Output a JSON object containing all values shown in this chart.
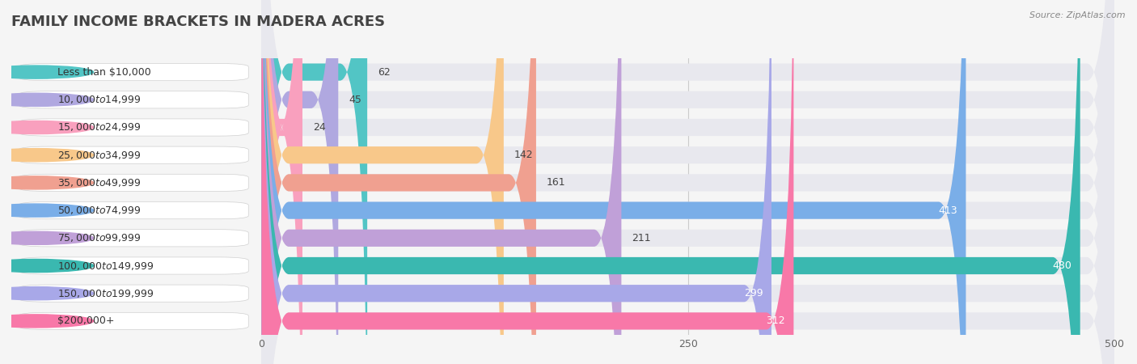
{
  "title": "FAMILY INCOME BRACKETS IN MADERA ACRES",
  "source": "Source: ZipAtlas.com",
  "categories": [
    "Less than $10,000",
    "$10,000 to $14,999",
    "$15,000 to $24,999",
    "$25,000 to $34,999",
    "$35,000 to $49,999",
    "$50,000 to $74,999",
    "$75,000 to $99,999",
    "$100,000 to $149,999",
    "$150,000 to $199,999",
    "$200,000+"
  ],
  "values": [
    62,
    45,
    24,
    142,
    161,
    413,
    211,
    480,
    299,
    312
  ],
  "bar_colors": [
    "#52c5c5",
    "#b0a8e0",
    "#f9a0be",
    "#f8c88a",
    "#f0a090",
    "#7aaee8",
    "#c0a0d8",
    "#3ab8b0",
    "#a8a8e8",
    "#f878a8"
  ],
  "background_color": "#f5f5f5",
  "bar_bg_color": "#e8e8ee",
  "xlim": [
    0,
    500
  ],
  "xticks": [
    0,
    250,
    500
  ],
  "title_fontsize": 13,
  "label_fontsize": 9,
  "value_fontsize": 9
}
